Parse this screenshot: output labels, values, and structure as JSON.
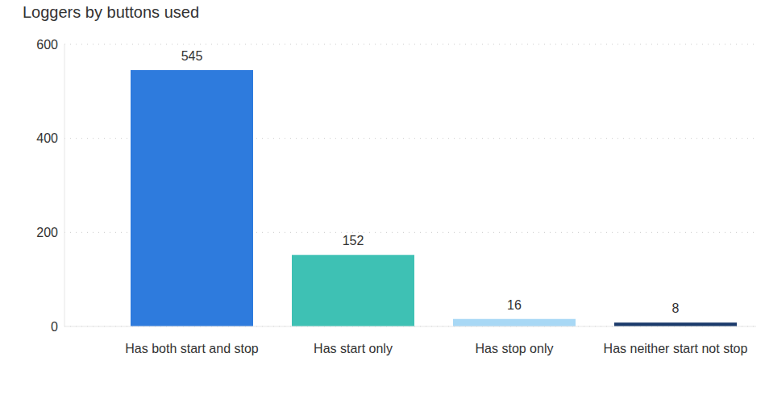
{
  "chart_data": {
    "type": "bar",
    "title": "Loggers by buttons used",
    "categories": [
      "Has both start and stop",
      "Has start only",
      "Has stop only",
      "Has neither start not stop"
    ],
    "values": [
      545,
      152,
      16,
      8
    ],
    "colors": [
      "#2e7bdd",
      "#3ec1b4",
      "#a8d8f5",
      "#1b3a6b"
    ],
    "ylim": [
      0,
      600
    ],
    "yticks": [
      0,
      200,
      400,
      600
    ],
    "grid": true,
    "data_labels": true
  }
}
